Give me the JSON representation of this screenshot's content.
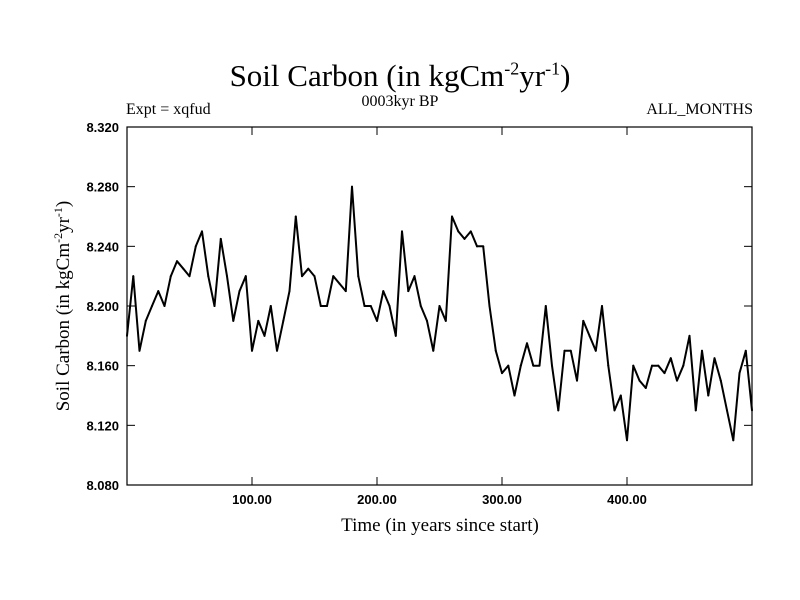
{
  "chart_data": {
    "type": "line",
    "title": "Soil Carbon (in kgCm-2yr-1)",
    "title_parts": {
      "main": "Soil Carbon (in kgCm",
      "exp1": "-2",
      "mid": "yr",
      "exp2": "-1",
      "end": ")"
    },
    "subtitle": "0003kyr BP",
    "left_note": "Expt = xqfud",
    "right_note": "ALL_MONTHS",
    "xlabel": "Time (in years since start)",
    "ylabel": "Soil Carbon (in kgCm-2yr-1)",
    "ylabel_parts": {
      "main": "Soil Carbon (in kgCm",
      "exp1": "-2",
      "mid": "yr",
      "exp2": "-1",
      "end": ")"
    },
    "xlim": [
      0,
      500
    ],
    "ylim": [
      8.08,
      8.32
    ],
    "xticks": [
      100,
      200,
      300,
      400
    ],
    "xtick_labels": [
      "100.00",
      "200.00",
      "300.00",
      "400.00"
    ],
    "yticks": [
      8.08,
      8.12,
      8.16,
      8.2,
      8.24,
      8.28,
      8.32
    ],
    "ytick_labels": [
      "8.080",
      "8.120",
      "8.160",
      "8.200",
      "8.240",
      "8.280",
      "8.320"
    ],
    "series": [
      {
        "name": "soil carbon",
        "x": [
          0,
          5,
          10,
          15,
          20,
          25,
          30,
          35,
          40,
          45,
          50,
          55,
          60,
          65,
          70,
          75,
          80,
          85,
          90,
          95,
          100,
          105,
          110,
          115,
          120,
          125,
          130,
          135,
          140,
          145,
          150,
          155,
          160,
          165,
          170,
          175,
          180,
          185,
          190,
          195,
          200,
          205,
          210,
          215,
          220,
          225,
          230,
          235,
          240,
          245,
          250,
          255,
          260,
          265,
          270,
          275,
          280,
          285,
          290,
          295,
          300,
          305,
          310,
          315,
          320,
          325,
          330,
          335,
          340,
          345,
          350,
          355,
          360,
          365,
          370,
          375,
          380,
          385,
          390,
          395,
          400,
          405,
          410,
          415,
          420,
          425,
          430,
          435,
          440,
          445,
          450,
          455,
          460,
          465,
          470,
          475,
          480,
          485,
          490,
          495,
          500
        ],
        "values": [
          8.18,
          8.22,
          8.17,
          8.19,
          8.2,
          8.21,
          8.2,
          8.22,
          8.23,
          8.225,
          8.22,
          8.24,
          8.25,
          8.22,
          8.2,
          8.245,
          8.22,
          8.19,
          8.21,
          8.22,
          8.17,
          8.19,
          8.18,
          8.2,
          8.17,
          8.19,
          8.21,
          8.26,
          8.22,
          8.225,
          8.22,
          8.2,
          8.2,
          8.22,
          8.215,
          8.21,
          8.28,
          8.22,
          8.2,
          8.2,
          8.19,
          8.21,
          8.2,
          8.18,
          8.25,
          8.21,
          8.22,
          8.2,
          8.19,
          8.17,
          8.2,
          8.19,
          8.26,
          8.25,
          8.245,
          8.25,
          8.24,
          8.24,
          8.2,
          8.17,
          8.155,
          8.16,
          8.14,
          8.16,
          8.175,
          8.16,
          8.16,
          8.2,
          8.16,
          8.13,
          8.17,
          8.17,
          8.15,
          8.19,
          8.18,
          8.17,
          8.2,
          8.16,
          8.13,
          8.14,
          8.11,
          8.16,
          8.15,
          8.145,
          8.16,
          8.16,
          8.155,
          8.165,
          8.15,
          8.16,
          8.18,
          8.13,
          8.17,
          8.14,
          8.165,
          8.15,
          8.13,
          8.11,
          8.155,
          8.17,
          8.13
        ]
      }
    ]
  }
}
